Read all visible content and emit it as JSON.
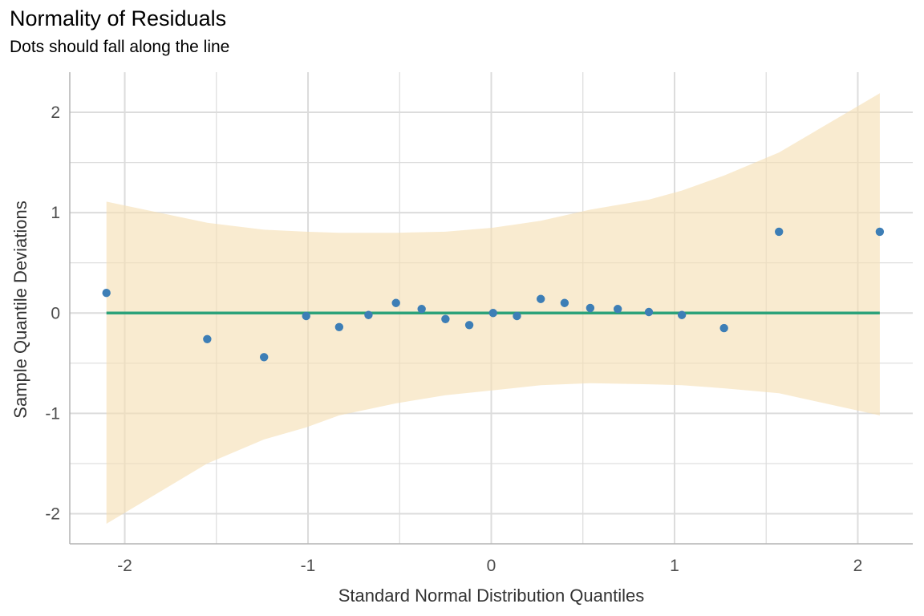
{
  "chart_data": {
    "type": "scatter",
    "title": "Normality of Residuals",
    "subtitle": "Dots should fall along the line",
    "xlabel": "Standard Normal Distribution Quantiles",
    "ylabel": "Sample Quantile Deviations",
    "xlim": [
      -2.3,
      2.3
    ],
    "ylim": [
      -2.3,
      2.4
    ],
    "x_ticks": [
      -2,
      -1,
      0,
      1,
      2
    ],
    "x_tick_labels": [
      "-2",
      "-1",
      "0",
      "1",
      "2"
    ],
    "y_ticks": [
      -2,
      -1,
      0,
      1,
      2
    ],
    "y_tick_labels": [
      "-2",
      "-1",
      "0",
      "1",
      "2"
    ],
    "grid": true,
    "points": [
      {
        "x": -2.1,
        "y": 0.2
      },
      {
        "x": -1.55,
        "y": -0.26
      },
      {
        "x": -1.24,
        "y": -0.44
      },
      {
        "x": -1.01,
        "y": -0.03
      },
      {
        "x": -0.83,
        "y": -0.14
      },
      {
        "x": -0.67,
        "y": -0.02
      },
      {
        "x": -0.52,
        "y": 0.1
      },
      {
        "x": -0.38,
        "y": 0.04
      },
      {
        "x": -0.25,
        "y": -0.06
      },
      {
        "x": -0.12,
        "y": -0.12
      },
      {
        "x": 0.01,
        "y": 0.0
      },
      {
        "x": 0.14,
        "y": -0.03
      },
      {
        "x": 0.27,
        "y": 0.14
      },
      {
        "x": 0.4,
        "y": 0.1
      },
      {
        "x": 0.54,
        "y": 0.05
      },
      {
        "x": 0.69,
        "y": 0.04
      },
      {
        "x": 0.86,
        "y": 0.01
      },
      {
        "x": 1.04,
        "y": -0.02
      },
      {
        "x": 1.27,
        "y": -0.15
      },
      {
        "x": 1.57,
        "y": 0.81
      },
      {
        "x": 2.12,
        "y": 0.81
      }
    ],
    "reference_line": {
      "y": 0,
      "x_range": [
        -2.1,
        2.12
      ]
    },
    "confidence_band": {
      "x": [
        -2.1,
        -1.55,
        -1.24,
        -1.01,
        -0.83,
        -0.52,
        -0.25,
        0.01,
        0.27,
        0.54,
        0.86,
        1.04,
        1.27,
        1.57,
        2.12
      ],
      "upper": [
        1.11,
        0.9,
        0.83,
        0.81,
        0.8,
        0.8,
        0.81,
        0.85,
        0.92,
        1.03,
        1.13,
        1.22,
        1.37,
        1.6,
        2.19
      ],
      "lower": [
        -2.1,
        -1.5,
        -1.26,
        -1.14,
        -1.02,
        -0.9,
        -0.82,
        -0.77,
        -0.72,
        -0.7,
        -0.71,
        -0.72,
        -0.75,
        -0.8,
        -1.02
      ]
    },
    "colors": {
      "points": "#3d7eb6",
      "line": "#2ca27a",
      "band": "#f5deb3",
      "band_opacity": 0.62,
      "grid": "#dcdcdc",
      "axis": "#b3b3b3"
    }
  }
}
